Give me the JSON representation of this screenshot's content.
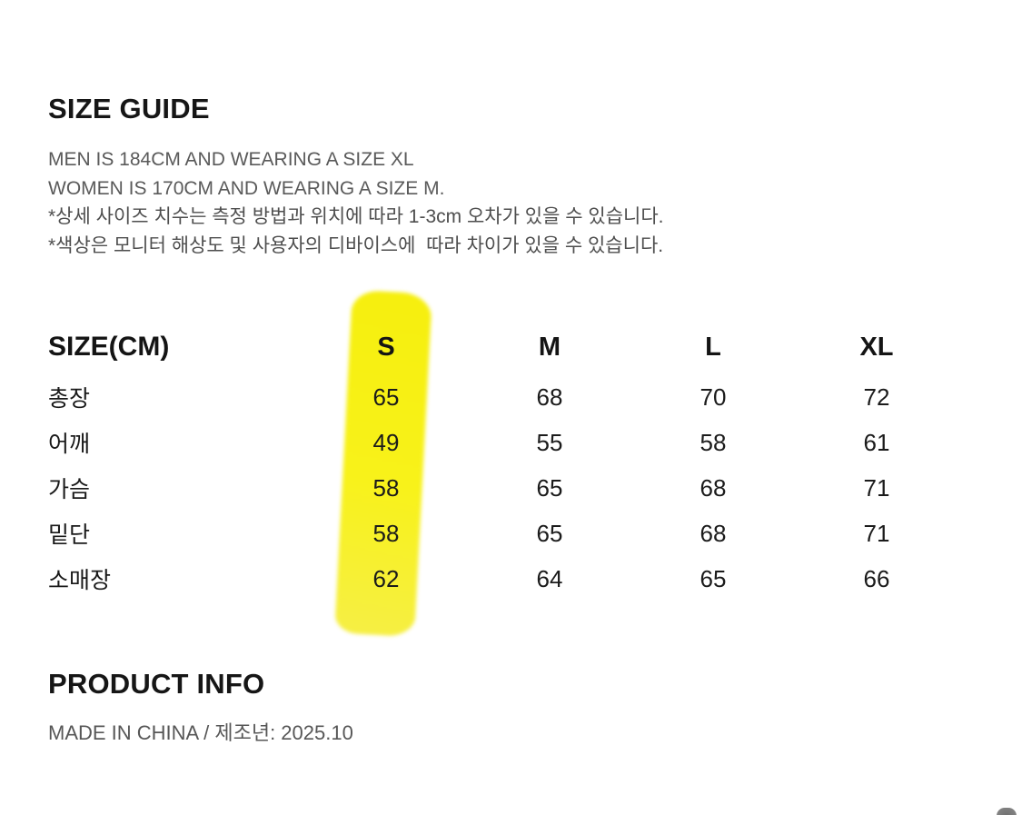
{
  "size_guide": {
    "title": "SIZE GUIDE",
    "notes": [
      "MEN IS 184CM AND WEARING A SIZE XL",
      "WOMEN IS 170CM AND WEARING A SIZE M.",
      "*상세 사이즈 치수는 측정 방법과 위치에 따라 1-3cm 오차가 있을 수 있습니다.",
      "*색상은 모니터 해상도 및 사용자의 디바이스에  따라 차이가 있을 수 있습니다."
    ]
  },
  "size_table": {
    "label_header": "SIZE(CM)",
    "columns": [
      "S",
      "M",
      "L",
      "XL"
    ],
    "highlighted_column": "S",
    "highlight_color": "#F7F116",
    "rows": [
      {
        "label": "총장",
        "values": [
          "65",
          "68",
          "70",
          "72"
        ]
      },
      {
        "label": "어깨",
        "values": [
          "49",
          "55",
          "58",
          "61"
        ]
      },
      {
        "label": "가슴",
        "values": [
          "58",
          "65",
          "68",
          "71"
        ]
      },
      {
        "label": "밑단",
        "values": [
          "58",
          "65",
          "68",
          "71"
        ]
      },
      {
        "label": "소매장",
        "values": [
          "62",
          "64",
          "65",
          "66"
        ]
      }
    ]
  },
  "product_info": {
    "title": "PRODUCT INFO",
    "detail": "MADE IN CHINA / 제조년: 2025.10"
  },
  "floating_button": {
    "icon": "scroll-top-button-peek",
    "color": "#7d7d7d"
  }
}
